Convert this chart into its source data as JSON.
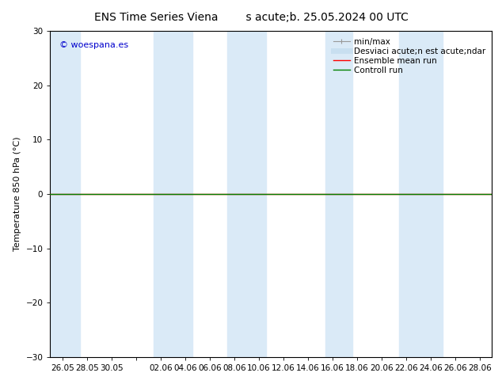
{
  "title_left": "ENS Time Series Viena",
  "title_right": "s acute;b. 25.05.2024 00 UTC",
  "ylabel": "Temperature 850 hPa (°C)",
  "ylim": [
    -30,
    30
  ],
  "yticks": [
    -30,
    -20,
    -10,
    0,
    10,
    20,
    30
  ],
  "background_color": "#ffffff",
  "plot_bg_color": "#ffffff",
  "shaded_bands_color": "#daeaf7",
  "control_run_color": "#008000",
  "ensemble_mean_color": "#ff0000",
  "watermark_text": "© woespana.es",
  "watermark_color": "#0000cc",
  "tick_labels": [
    "26.05",
    "28.05",
    "30.05",
    "",
    "02.06",
    "04.06",
    "06.06",
    "08.06",
    "10.06",
    "12.06",
    "14.06",
    "16.06",
    "18.06",
    "20.06",
    "22.06",
    "24.06",
    "26.06",
    "28.06"
  ],
  "font_size_title": 10,
  "font_size_ticks": 7.5,
  "font_size_legend": 7.5,
  "font_size_ylabel": 8,
  "font_size_watermark": 8
}
